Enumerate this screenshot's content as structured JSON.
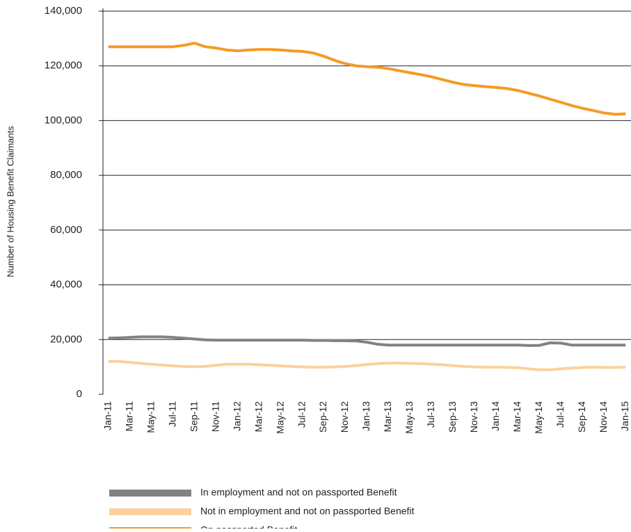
{
  "chart_data": {
    "type": "line",
    "y_label": "Number of Housing Benefit Claimants",
    "categories": [
      "Jan-11",
      null,
      "Mar-11",
      null,
      "May-11",
      null,
      "Jul-11",
      null,
      "Sep-11",
      null,
      "Nov-11",
      null,
      "Jan-12",
      null,
      "Mar-12",
      null,
      "May-12",
      null,
      "Jul-12",
      null,
      "Sep-12",
      null,
      "Nov-12",
      null,
      "Jan-13",
      null,
      "Mar-13",
      null,
      "May-13",
      null,
      "Jul-13",
      null,
      "Sep-13",
      null,
      "Nov-13",
      null,
      "Jan-14",
      null,
      "Mar-14",
      null,
      "May-14",
      null,
      "Jul-14",
      null,
      "Sep-14",
      null,
      "Nov-14",
      null,
      "Jan-15"
    ],
    "series": [
      {
        "name": "In employment and not on passported Benefit",
        "color": "#808285",
        "values": [
          20500,
          20600,
          20800,
          21000,
          21000,
          21000,
          20800,
          20500,
          20200,
          19900,
          19800,
          19800,
          19800,
          19800,
          19800,
          19800,
          19800,
          19800,
          19800,
          19700,
          19700,
          19600,
          19600,
          19500,
          19000,
          18300,
          18000,
          18000,
          18000,
          18000,
          18000,
          18000,
          18000,
          18000,
          18000,
          18000,
          18000,
          18000,
          18000,
          17800,
          17900,
          18800,
          18700,
          18000,
          18000,
          18000,
          18000,
          18000,
          18000
        ]
      },
      {
        "name": "Not in employment and not on passported Benefit",
        "color": "#fbd29b",
        "values": [
          12000,
          12000,
          11700,
          11300,
          11000,
          10700,
          10400,
          10200,
          10100,
          10200,
          10600,
          11000,
          11000,
          11000,
          10800,
          10600,
          10400,
          10200,
          10000,
          9900,
          9900,
          10000,
          10200,
          10500,
          10900,
          11200,
          11400,
          11400,
          11300,
          11200,
          11000,
          10800,
          10500,
          10200,
          10000,
          9900,
          9900,
          9800,
          9700,
          9300,
          9000,
          9000,
          9300,
          9600,
          9800,
          9900,
          9800,
          9800,
          9900
        ]
      },
      {
        "name": "On passported Benefit",
        "color": "#f49b24",
        "values": [
          127000,
          127000,
          127000,
          127000,
          127000,
          127000,
          127000,
          127500,
          128300,
          127000,
          126500,
          125800,
          125500,
          125800,
          126000,
          126000,
          125800,
          125500,
          125300,
          124700,
          123500,
          122000,
          120800,
          120000,
          119700,
          119500,
          119000,
          118200,
          117500,
          116800,
          116000,
          115000,
          114000,
          113200,
          112800,
          112400,
          112100,
          111700,
          111000,
          110000,
          109000,
          107800,
          106700,
          105500,
          104500,
          103700,
          102800,
          102300,
          102500
        ]
      }
    ],
    "ylim": [
      0,
      140000
    ],
    "yticks": [
      0,
      {
        "value": 20000,
        "label": "20,000"
      },
      {
        "value": 40000,
        "label": "40,000"
      },
      {
        "value": 60000,
        "label": "60,000"
      },
      {
        "value": 80000,
        "label": "80,000"
      },
      {
        "value": 100000,
        "label": "100,000"
      },
      {
        "value": 120000,
        "label": "120,000"
      },
      {
        "value": 140000,
        "label": "140,000"
      }
    ],
    "grid": true
  }
}
